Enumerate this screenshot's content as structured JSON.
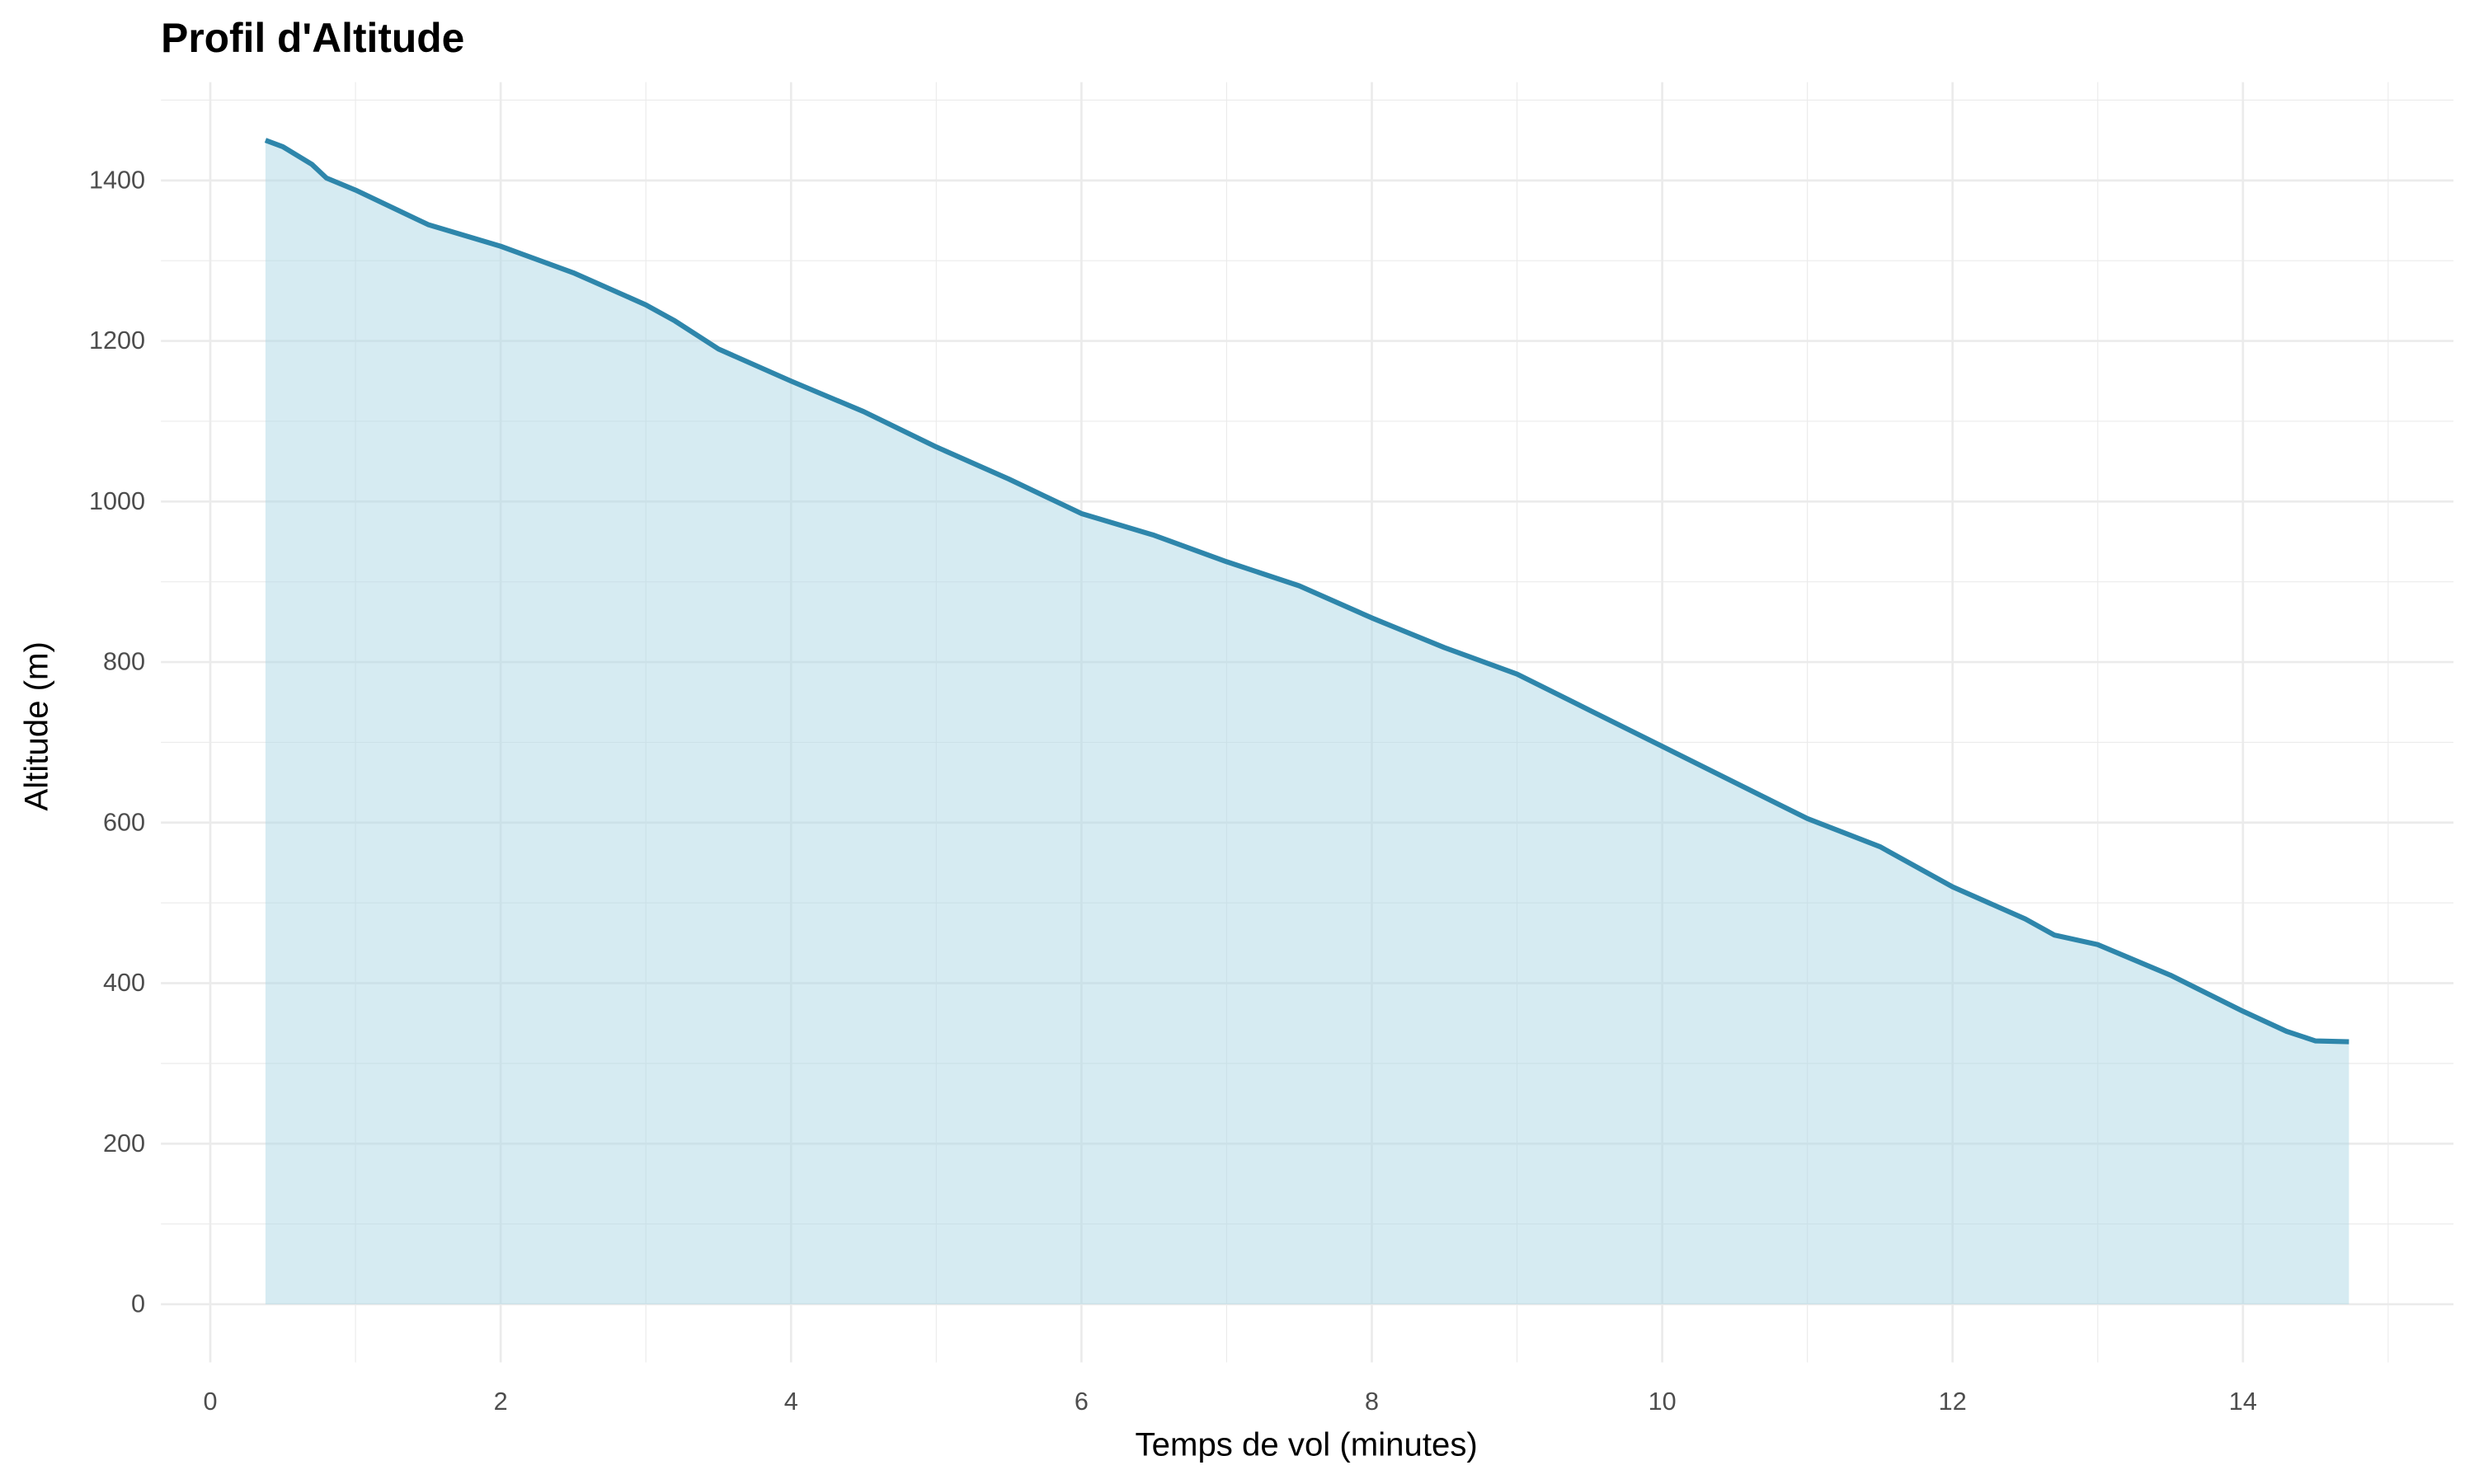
{
  "chart_data": {
    "type": "area",
    "title": "Profil d'Altitude",
    "x_label": "Temps de vol (minutes)",
    "y_label": "Altitude (m)",
    "x": [
      0.38,
      0.5,
      0.7,
      0.8,
      1.0,
      1.5,
      2.0,
      2.5,
      3.0,
      3.2,
      3.5,
      4.0,
      4.5,
      5.0,
      5.5,
      6.0,
      6.5,
      7.0,
      7.5,
      8.0,
      8.5,
      9.0,
      9.5,
      10.0,
      10.5,
      11.0,
      11.5,
      12.0,
      12.5,
      12.7,
      13.0,
      13.5,
      14.0,
      14.3,
      14.5,
      14.73
    ],
    "values": [
      1450,
      1442,
      1420,
      1403,
      1388,
      1345,
      1318,
      1285,
      1245,
      1225,
      1190,
      1150,
      1112,
      1068,
      1028,
      985,
      958,
      925,
      895,
      855,
      818,
      785,
      740,
      695,
      650,
      605,
      570,
      520,
      480,
      460,
      448,
      410,
      365,
      340,
      328,
      327
    ],
    "color": "#2e86ab",
    "fill_color": "#add8e6",
    "xlim": [
      -0.34,
      15.45
    ],
    "ylim": [
      -72.5,
      1522.5
    ],
    "xticks": [
      0,
      2,
      4,
      6,
      8,
      10,
      12,
      14
    ],
    "yticks": [
      0,
      200,
      400,
      600,
      800,
      1000,
      1200,
      1400
    ],
    "grid": true
  }
}
